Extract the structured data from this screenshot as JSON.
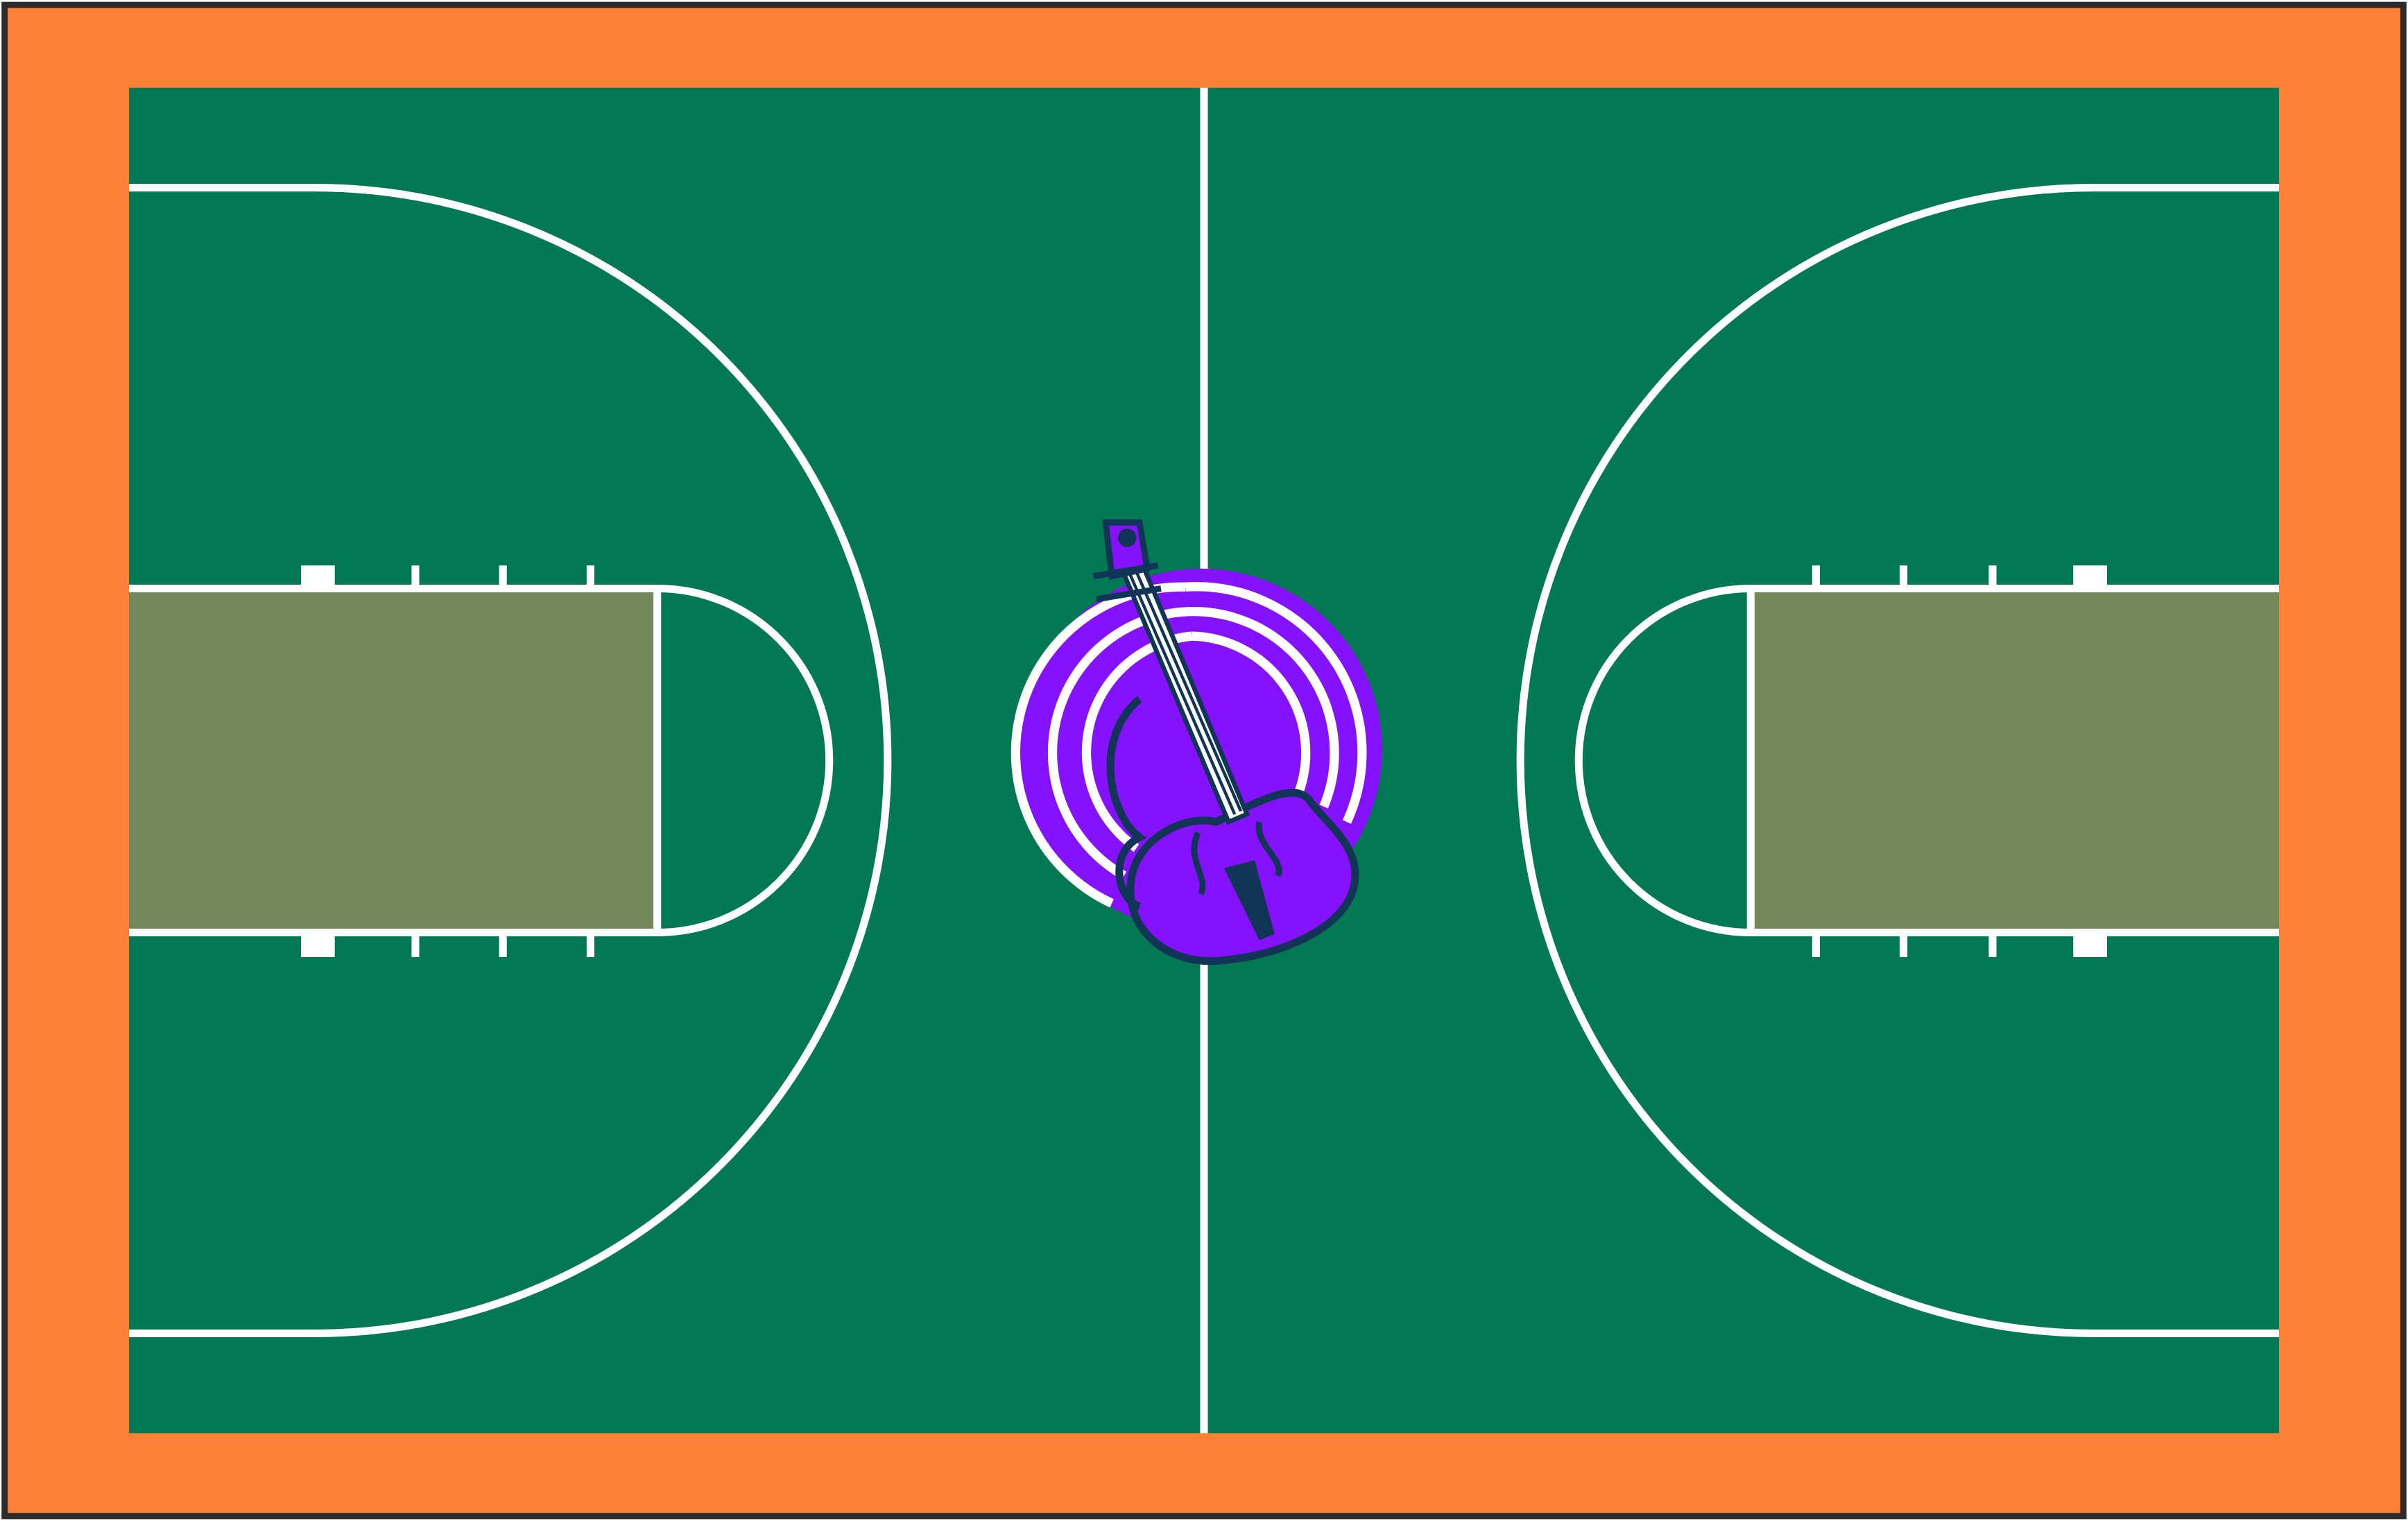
{
  "court": {
    "colors": {
      "outer_border": "#2b2b2b",
      "apron": "#ff8135",
      "playing_surface": "#007852",
      "key_paint": "#71895d",
      "lines": "#ffffff"
    }
  },
  "logo": {
    "icon": "violin-icon",
    "colors": {
      "background": "#8512ff",
      "outline": "#ffffff",
      "ink": "#123456"
    }
  }
}
